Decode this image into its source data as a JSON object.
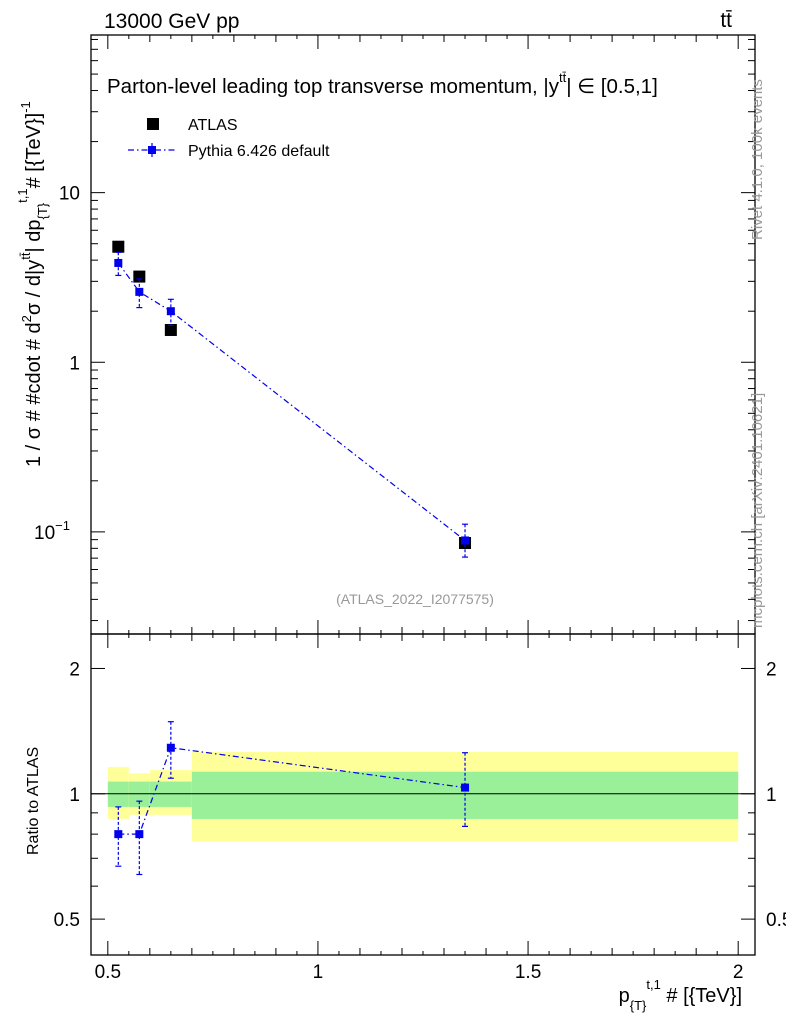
{
  "header": {
    "energy_label": "13000 GeV pp",
    "process_label": "tt̄"
  },
  "side_labels": {
    "rivet": "Rivet 4.1.0,  100k events",
    "source": "mcplots.cern.ch [arXiv:2401.10621]"
  },
  "chart_data": {
    "type": "scatter",
    "title": "Parton-level leading top transverse momentum, |y^{tt̄}| ∈ [0.5,1]",
    "title_main": "Parton-level leading top transverse momentum, |y",
    "title_sup": "tt̄",
    "title_range": "| ∈ [0.5,1]",
    "watermark": "(ATLAS_2022_I2077575)",
    "xlabel": "p_{T}^{t,1} # [{TeV}]",
    "xlabel_main": "p",
    "xlabel_sub": "{T}",
    "xlabel_sup": "t,1",
    "xlabel_rest": " # [{TeV}]",
    "ylabel": "1 / σ # #cdot # d²σ / d|y^{tt̄}| dp_{T}^{t,1} # [{TeV}]^{-1}",
    "ylabel_a": "1 / σ # #cdot # d",
    "ylabel_b": "σ / d|y",
    "ylabel_c": "| dp",
    "ylabel_d": "# [{TeV}]",
    "ylabel_sup2": "2",
    "ylabel_suptt": "tt̄",
    "ylabel_sub": "{T}",
    "ylabel_supt": "t,1",
    "ylabel_supm1": "-1",
    "ratio_ylabel": "Ratio to ATLAS",
    "xlim": [
      0.46,
      2.04
    ],
    "ylim_main": [
      0.025,
      85
    ],
    "ylim_ratio": [
      0.41,
      2.42
    ],
    "x_ticks": [
      0.5,
      1,
      1.5,
      2
    ],
    "x_tick_labels": [
      "0.5",
      "1",
      "1.5",
      "2"
    ],
    "main_y_labels": [
      "10",
      "1",
      "10"
    ],
    "main_y_label_exp": "−1",
    "main_y_label_values": [
      10,
      1,
      0.1
    ],
    "ratio_y_ticks": [
      0.5,
      1,
      2
    ],
    "ratio_y_tick_labels": [
      "0.5",
      "1",
      "2"
    ],
    "legend": [
      {
        "name": "ATLAS",
        "marker": "square-black"
      },
      {
        "name": "Pythia 6.426 default",
        "marker": "square-blue-dashdot"
      }
    ],
    "bins": [
      [
        0.5,
        0.55
      ],
      [
        0.55,
        0.6
      ],
      [
        0.6,
        0.7
      ],
      [
        0.7,
        2.0
      ]
    ],
    "series": [
      {
        "name": "ATLAS",
        "color": "#000000",
        "x": [
          0.525,
          0.575,
          0.65,
          1.35
        ],
        "y": [
          4.8,
          3.2,
          1.55,
          0.086
        ]
      },
      {
        "name": "Pythia 6.426 default",
        "color": "#0000ee",
        "x": [
          0.525,
          0.575,
          0.65,
          1.35
        ],
        "y": [
          3.85,
          2.6,
          2.0,
          0.089
        ],
        "err_low": [
          0.6,
          0.5,
          0.35,
          0.018
        ],
        "err_high": [
          0.6,
          0.5,
          0.35,
          0.022
        ],
        "ratio": [
          0.8,
          0.8,
          1.29,
          1.035
        ],
        "ratio_err_low": [
          0.13,
          0.16,
          0.2,
          0.2
        ],
        "ratio_err_high": [
          0.13,
          0.16,
          0.2,
          0.22
        ]
      }
    ],
    "ratio_bands": {
      "green_low": [
        0.93,
        0.93,
        0.93,
        0.87
      ],
      "green_high": [
        1.07,
        1.07,
        1.07,
        1.13
      ],
      "yellow_low": [
        0.87,
        0.89,
        0.89,
        0.77
      ],
      "yellow_high": [
        1.16,
        1.12,
        1.14,
        1.26
      ]
    },
    "colors": {
      "green_band": "#99f099",
      "yellow_band": "#ffff99",
      "mc": "#0000ee",
      "data": "#000000"
    }
  }
}
